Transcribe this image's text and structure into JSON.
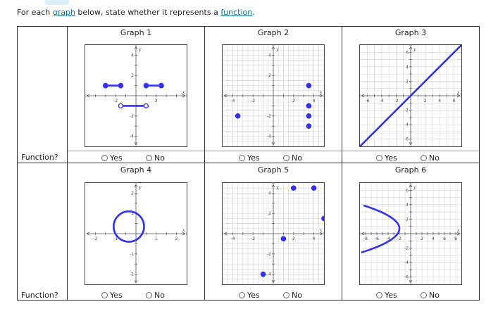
{
  "instructions": {
    "prefix": "For each ",
    "link1": "graph",
    "middle": " below, state whether it represents a ",
    "link2": "function",
    "suffix": "."
  },
  "row_label": "Function?",
  "options": {
    "yes": "Yes",
    "no": "No"
  },
  "colors": {
    "curve": "#3333ee",
    "grid": "#d4d4d4",
    "axis": "#555555"
  },
  "graphs": [
    {
      "title": "Graph 1",
      "axis_x_label": "x",
      "axis_y_label": "y",
      "x_ticks": [
        "-2",
        "2"
      ],
      "y_ticks": [
        "4",
        "2",
        "-2",
        "-4"
      ]
    },
    {
      "title": "Graph 2",
      "axis_x_label": "x",
      "axis_y_label": "y",
      "x_ticks": [
        "-4",
        "-2",
        "2",
        "4"
      ],
      "y_ticks": [
        "4",
        "2",
        "-2",
        "-4"
      ]
    },
    {
      "title": "Graph 3",
      "axis_x_label": "x",
      "axis_y_label": "y",
      "x_ticks": [
        "-6",
        "-4",
        "-2",
        "2",
        "4",
        "6"
      ],
      "y_ticks": [
        "6",
        "4",
        "2",
        "-2",
        "-4",
        "-6"
      ]
    },
    {
      "title": "Graph 4",
      "axis_x_label": "x",
      "axis_y_label": "y",
      "x_ticks": [
        "-2",
        "-1",
        "1",
        "2"
      ],
      "y_ticks": [
        "2",
        "1",
        "-1",
        "-2"
      ]
    },
    {
      "title": "Graph 5",
      "axis_x_label": "x",
      "axis_y_label": "y",
      "x_ticks": [
        "-4",
        "-2",
        "2",
        "4"
      ],
      "y_ticks": [
        "4",
        "2",
        "-2",
        "-4"
      ]
    },
    {
      "title": "Graph 6",
      "axis_x_label": "x",
      "axis_y_label": "y",
      "x_ticks": [
        "-8",
        "-6",
        "-4",
        "-2",
        "2",
        "4",
        "6",
        "8"
      ],
      "y_ticks": [
        "6",
        "4",
        "2",
        "-2",
        "-4",
        "-6"
      ]
    }
  ]
}
